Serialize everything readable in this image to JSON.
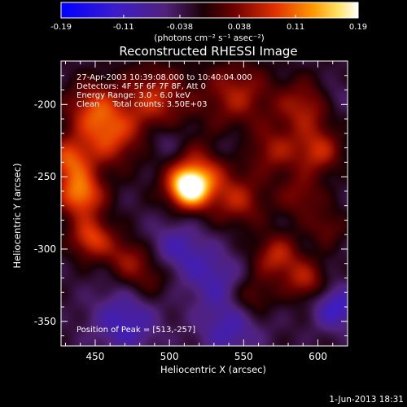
{
  "chart_data": {
    "type": "heatmap",
    "title": "Reconstructed RHESSI Image",
    "xlabel": "Heliocentric X (arcsec)",
    "ylabel": "Heliocentric Y (arcsec)",
    "xlim": [
      427,
      620
    ],
    "ylim": [
      -367,
      -170
    ],
    "x_ticks": [
      450,
      500,
      550,
      600
    ],
    "y_ticks": [
      -200,
      -250,
      -300,
      -350
    ],
    "colorbar": {
      "range": [
        -0.19,
        0.19
      ],
      "ticks": [
        "-0.19",
        "-0.11",
        "-0.038",
        "0.038",
        "0.11",
        "0.19"
      ],
      "units_label": "(photons cm⁻² s⁻¹ asec⁻²)"
    },
    "annotations": [
      "27-Apr-2003 10:39:08.000 to 10:40:04.000",
      "Detectors: 4F 5F 6F 7F 8F, Att 0",
      "Energy Range: 3.0 - 6.0 keV",
      "Clean     Total counts: 3.50E+03"
    ],
    "peak_label": "Position of Peak = [513,-257]",
    "peak_position": [
      513,
      -257
    ],
    "sources": [
      {
        "x": 513,
        "y": -257,
        "value": 0.19,
        "spread": 9
      },
      {
        "x": 520,
        "y": -250,
        "value": 0.1,
        "spread": 16
      },
      {
        "x": 440,
        "y": -262,
        "value": 0.14,
        "spread": 11
      },
      {
        "x": 447,
        "y": -292,
        "value": 0.11,
        "spread": 10
      },
      {
        "x": 432,
        "y": -238,
        "value": 0.11,
        "spread": 11
      },
      {
        "x": 460,
        "y": -222,
        "value": 0.1,
        "spread": 14
      },
      {
        "x": 448,
        "y": -202,
        "value": 0.09,
        "spread": 13
      },
      {
        "x": 490,
        "y": -196,
        "value": 0.09,
        "spread": 16
      },
      {
        "x": 545,
        "y": -193,
        "value": 0.08,
        "spread": 16
      },
      {
        "x": 590,
        "y": -202,
        "value": 0.08,
        "spread": 13
      },
      {
        "x": 600,
        "y": -232,
        "value": 0.09,
        "spread": 11
      },
      {
        "x": 570,
        "y": -232,
        "value": 0.07,
        "spread": 12
      },
      {
        "x": 548,
        "y": -267,
        "value": 0.07,
        "spread": 12
      },
      {
        "x": 588,
        "y": -263,
        "value": 0.06,
        "spread": 11
      },
      {
        "x": 572,
        "y": -305,
        "value": 0.09,
        "spread": 11
      },
      {
        "x": 592,
        "y": -322,
        "value": 0.08,
        "spread": 10
      },
      {
        "x": 555,
        "y": -333,
        "value": 0.06,
        "spread": 10
      },
      {
        "x": 606,
        "y": -285,
        "value": 0.05,
        "spread": 9
      },
      {
        "x": 486,
        "y": -318,
        "value": 0.06,
        "spread": 12
      },
      {
        "x": 470,
        "y": -305,
        "value": 0.06,
        "spread": 10
      },
      {
        "x": 505,
        "y": -300,
        "value": -0.07,
        "spread": 14
      },
      {
        "x": 530,
        "y": -320,
        "value": -0.06,
        "spread": 14
      },
      {
        "x": 470,
        "y": -350,
        "value": -0.08,
        "spread": 16
      },
      {
        "x": 540,
        "y": -355,
        "value": -0.07,
        "spread": 15
      },
      {
        "x": 612,
        "y": -340,
        "value": -0.09,
        "spread": 11
      },
      {
        "x": 498,
        "y": -225,
        "value": -0.04,
        "spread": 10
      },
      {
        "x": 540,
        "y": -230,
        "value": -0.03,
        "spread": 8
      },
      {
        "x": 612,
        "y": -195,
        "value": -0.03,
        "spread": 8
      }
    ],
    "background_level": -0.025,
    "grid": false
  },
  "footer": {
    "timestamp": "1-Jun-2013 18:31"
  }
}
